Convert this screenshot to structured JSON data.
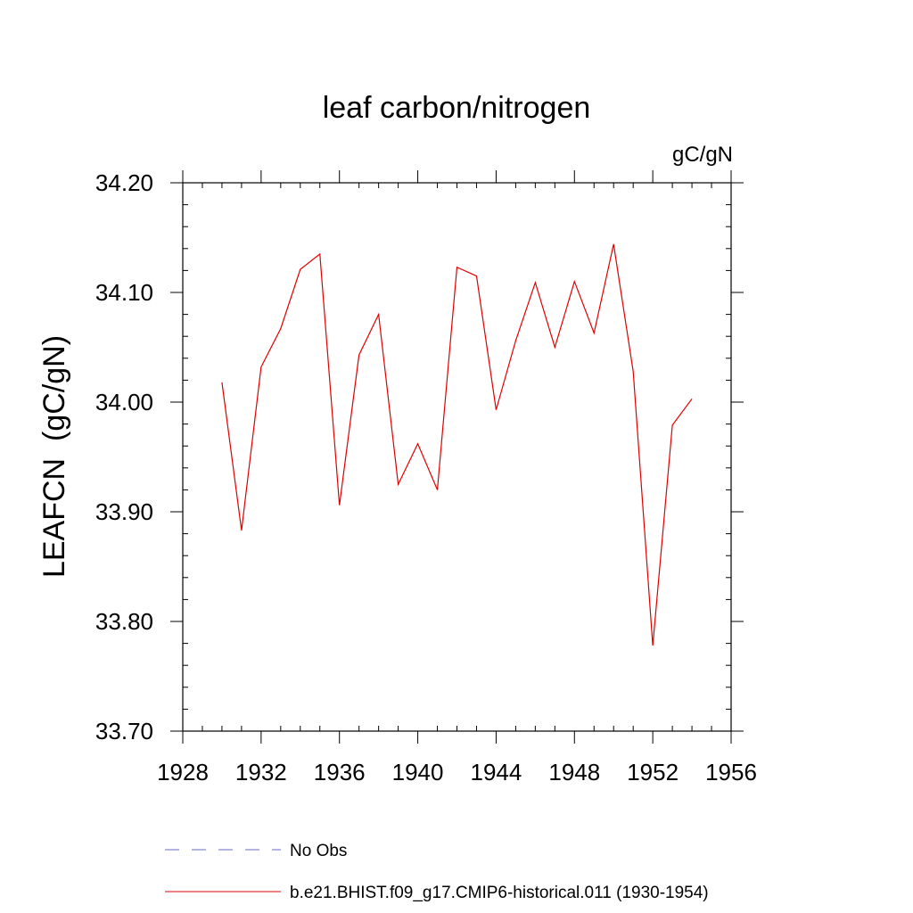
{
  "chart_data": {
    "type": "line",
    "title": "leaf carbon/nitrogen",
    "units_label": "gC/gN",
    "ylabel": "LEAFCN  (gC/gN)",
    "xlabel": "",
    "xlim": [
      1928,
      1956
    ],
    "ylim": [
      33.7,
      34.2
    ],
    "x_ticks": [
      1928,
      1932,
      1936,
      1940,
      1944,
      1948,
      1952,
      1956
    ],
    "x_tick_labels": [
      "1928",
      "1932",
      "1936",
      "1940",
      "1944",
      "1948",
      "1952",
      "1956"
    ],
    "y_ticks": [
      33.7,
      33.8,
      33.9,
      34.0,
      34.1,
      34.2
    ],
    "y_tick_labels": [
      "33.70",
      "33.80",
      "33.90",
      "34.00",
      "34.10",
      "34.20"
    ],
    "grid": false,
    "series": [
      {
        "name": "b.e21.BHIST.f09_g17.CMIP6-historical.011 (1930-1954)",
        "color": "#e00000",
        "style": "solid",
        "x": [
          1930,
          1931,
          1932,
          1933,
          1934,
          1935,
          1936,
          1937,
          1938,
          1939,
          1940,
          1941,
          1942,
          1943,
          1944,
          1945,
          1946,
          1947,
          1948,
          1949,
          1950,
          1951,
          1952,
          1953,
          1954
        ],
        "y": [
          34.018,
          33.883,
          34.032,
          34.067,
          34.121,
          34.135,
          33.906,
          34.043,
          34.08,
          33.925,
          33.962,
          33.92,
          34.123,
          34.115,
          33.993,
          34.056,
          34.109,
          34.05,
          34.11,
          34.063,
          34.144,
          34.028,
          33.778,
          33.979,
          34.003
        ]
      }
    ],
    "legend": {
      "position": "bottom",
      "entries": [
        {
          "label": "No Obs",
          "color": "#6a6ac8",
          "style": "dashed"
        },
        {
          "label": "b.e21.BHIST.f09_g17.CMIP6-historical.011 (1930-1954)",
          "color": "#e00000",
          "style": "solid"
        }
      ]
    }
  }
}
